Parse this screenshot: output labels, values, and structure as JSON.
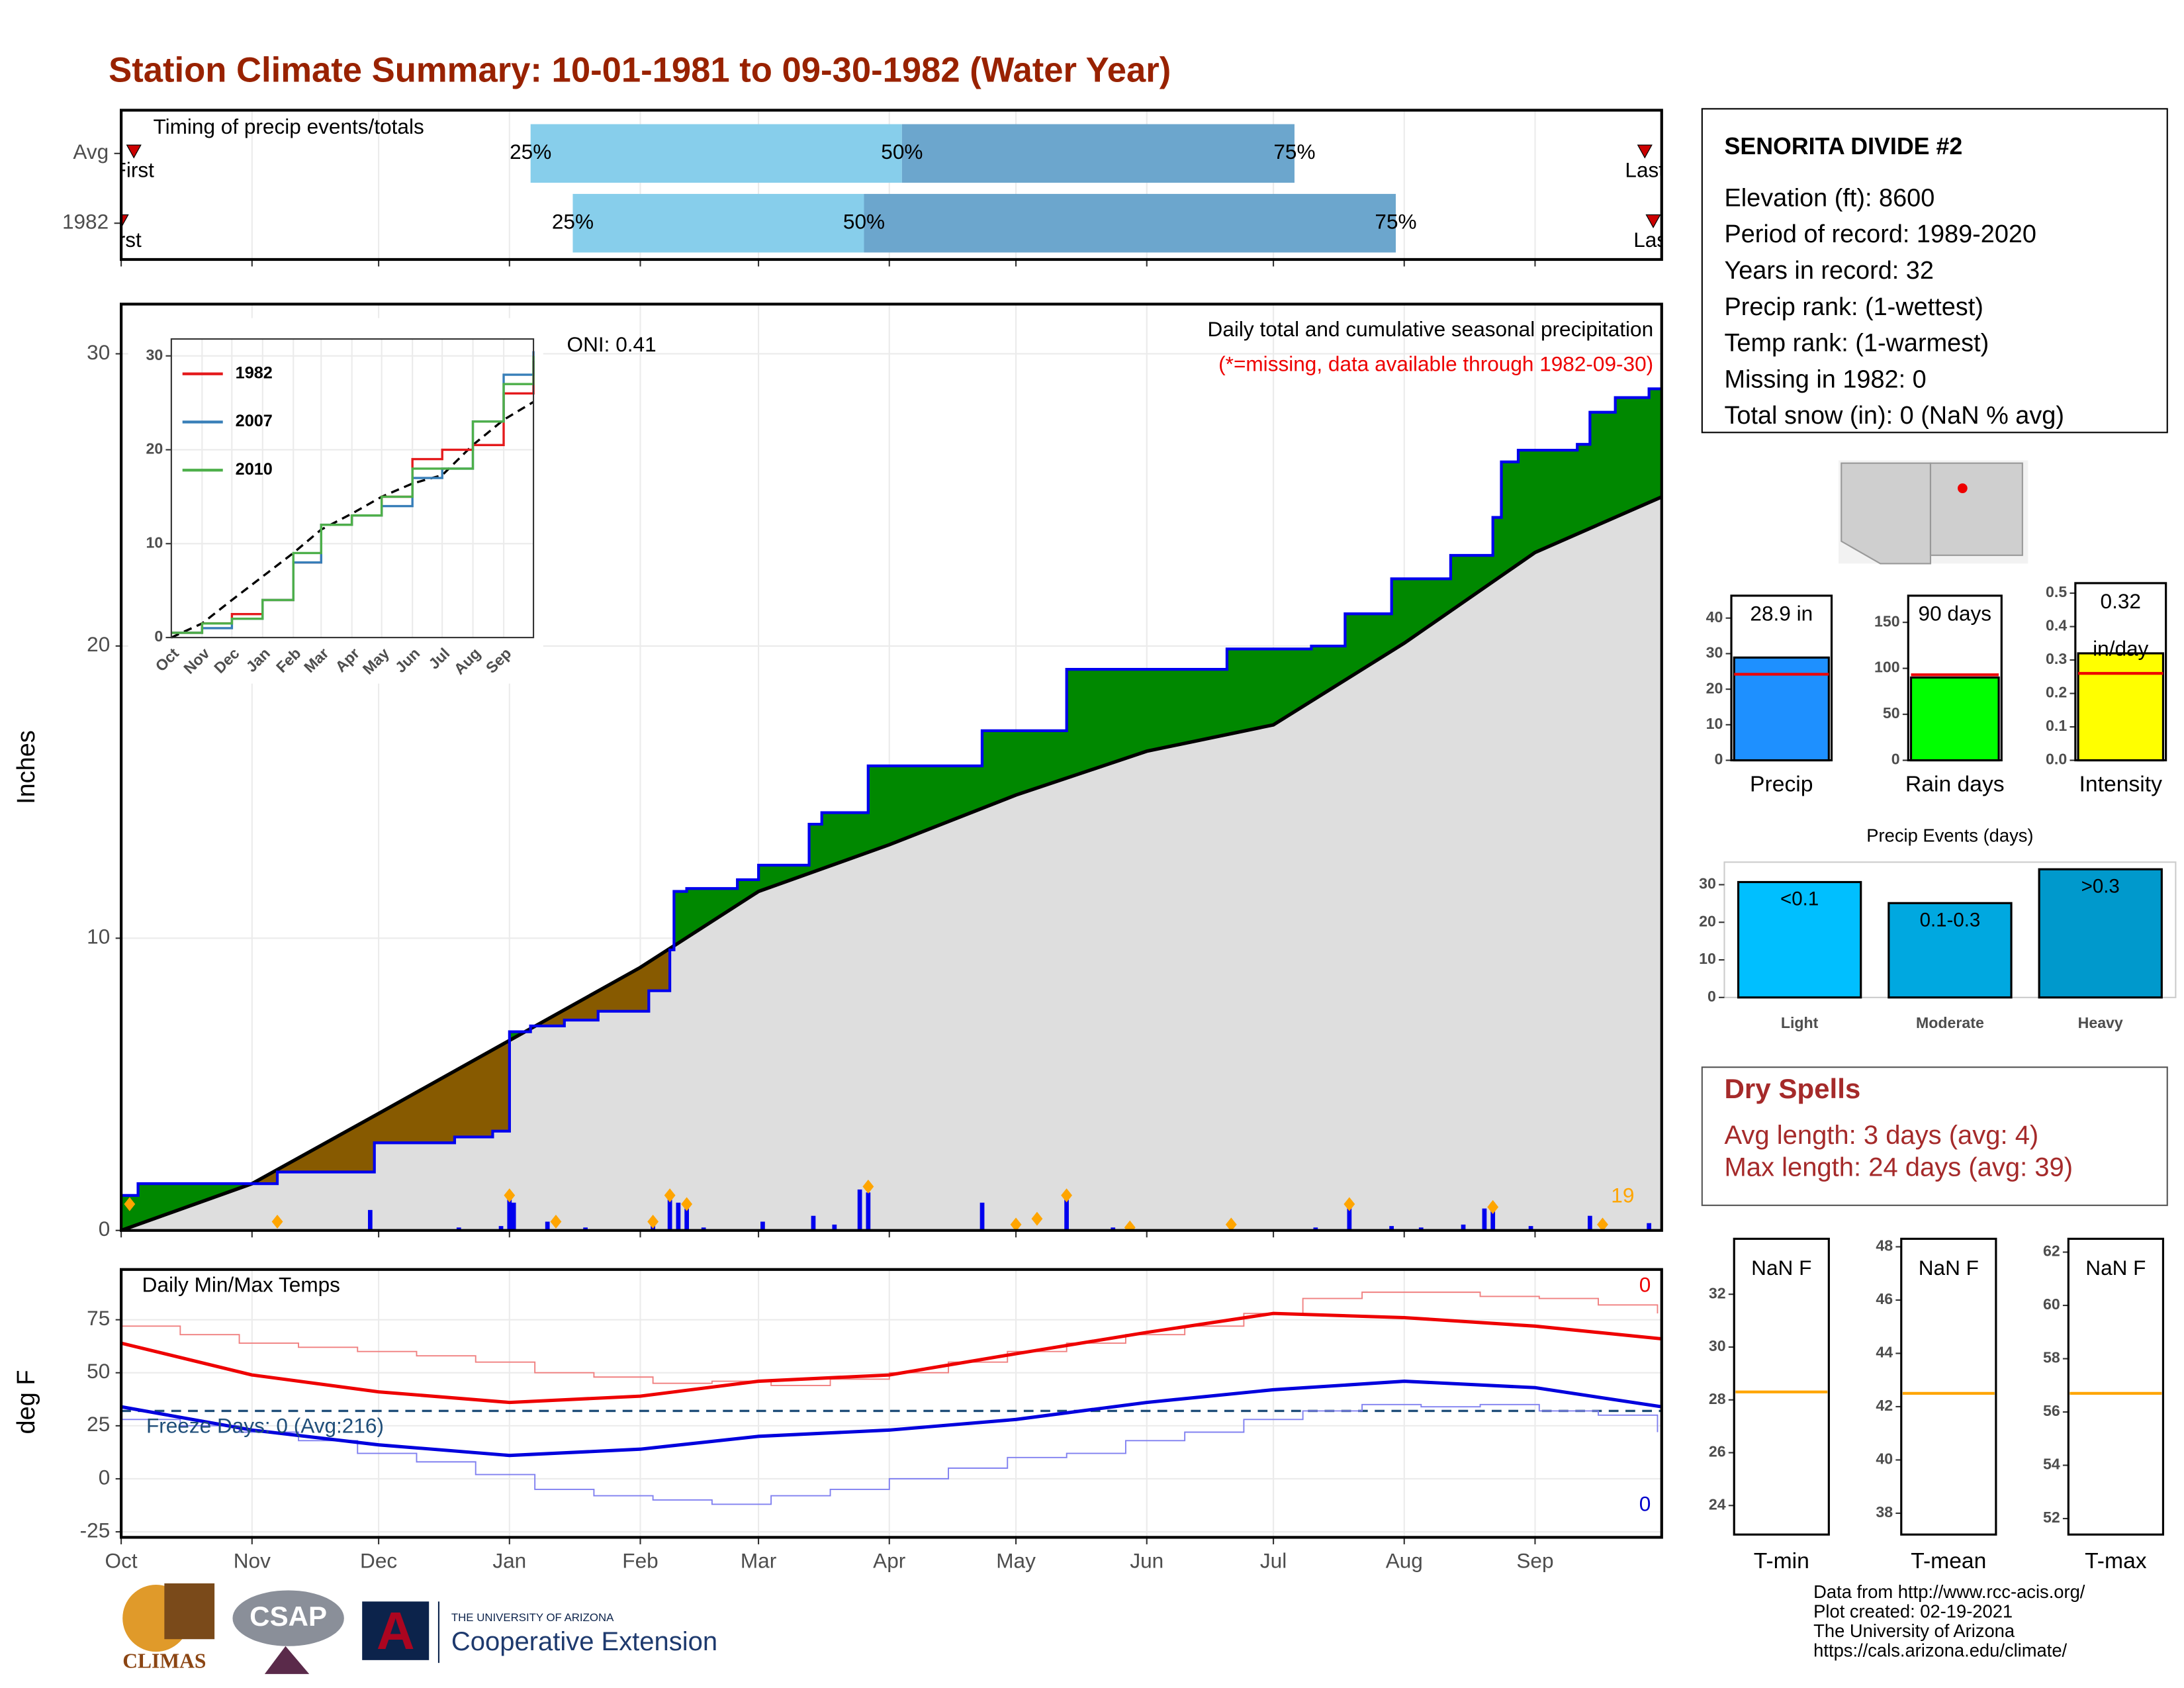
{
  "header": {
    "title": "Station Climate Summary: 10-01-1981 to 09-30-1982 (Water Year)"
  },
  "station": {
    "name": "SENORITA DIVIDE #2",
    "lines": [
      "Elevation (ft): 8600",
      "Period of record: 1989-2020",
      "Years in record: 32",
      "Precip rank:  (1-wettest)",
      "Temp rank:  (1-warmest)",
      "Missing in 1982: 0",
      "Total snow (in): 0 (NaN % avg)"
    ]
  },
  "dry_spells": {
    "title": "Dry Spells",
    "lines": [
      "Avg length: 3 days (avg: 4)",
      "Max length: 24 days (avg: 39)"
    ]
  },
  "footer": {
    "lines": [
      "Data from http://www.rcc-acis.org/",
      "Plot created: 02-19-2021",
      "The University of Arizona",
      "https://cals.arizona.edu/climate/"
    ]
  },
  "logos": {
    "climas": "CLIMAS",
    "csap": "CSAP",
    "university": "THE UNIVERSITY OF ARIZONA",
    "extension": "Cooperative Extension"
  },
  "chart_data": [
    {
      "type": "timing",
      "title": "Timing of precip events/totals",
      "xlim": [
        0,
        365
      ],
      "xticks": [
        0,
        31,
        61,
        92,
        123,
        151,
        182,
        212,
        243,
        273,
        304,
        335
      ],
      "rows": [
        {
          "name": "Avg",
          "first": 3,
          "q25": 97,
          "q50": 185,
          "q75": 278,
          "last": 361
        },
        {
          "name": "1982",
          "first": 0,
          "q25": 107,
          "q50": 176,
          "q75": 302,
          "last": 363
        }
      ],
      "quantile_labels": [
        "25%",
        "50%",
        "75%"
      ],
      "first_label": "First",
      "last_label": "Last",
      "colors": [
        "#87ceeb",
        "#6ca6cd"
      ],
      "marker_color": "#cc0000"
    },
    {
      "type": "cumulative_precip",
      "title": "Daily total and cumulative seasonal precipitation",
      "subtitle": "(*=missing, data available through 1982-09-30)",
      "annotation": "ONI: 0.41",
      "count_label": "19",
      "y_label": "Inches",
      "xlim": [
        0,
        365
      ],
      "xticks": [
        0,
        31,
        61,
        92,
        123,
        151,
        182,
        212,
        243,
        273,
        304,
        335
      ],
      "ylim": [
        0,
        31.7
      ],
      "yticks": [
        0,
        10,
        20,
        30
      ],
      "average": {
        "x": [
          0,
          31,
          61,
          92,
          123,
          151,
          182,
          212,
          243,
          273,
          304,
          335,
          365
        ],
        "values": [
          0,
          1.6,
          4.0,
          6.5,
          9.0,
          11.6,
          13.2,
          14.9,
          16.4,
          17.3,
          20.1,
          23.2,
          25.1
        ]
      },
      "observed": {
        "x": [
          0,
          4,
          37,
          60,
          79,
          88,
          92,
          97,
          105,
          113,
          125,
          130,
          131,
          134,
          146,
          151,
          163,
          166,
          177,
          204,
          224,
          262,
          282,
          290,
          301,
          315,
          325,
          327,
          331,
          345,
          348,
          354,
          362,
          365
        ],
        "values": [
          1.2,
          1.6,
          2.0,
          3.0,
          3.2,
          3.4,
          6.8,
          7.0,
          7.2,
          7.5,
          8.2,
          9.6,
          11.6,
          11.7,
          12.0,
          12.5,
          13.9,
          14.3,
          15.9,
          17.1,
          19.2,
          19.9,
          20.0,
          21.1,
          22.3,
          23.1,
          24.4,
          26.3,
          26.7,
          26.9,
          28.0,
          28.5,
          28.8,
          28.8
        ]
      },
      "daily": {
        "x": [
          59,
          80,
          90,
          92,
          93,
          101,
          110,
          126,
          130,
          132,
          134,
          138,
          152,
          164,
          169,
          175,
          177,
          204,
          224,
          235,
          283,
          291,
          301,
          308,
          318,
          323,
          325,
          334,
          348,
          362
        ],
        "values": [
          0.7,
          0.1,
          0.15,
          1.15,
          0.95,
          0.3,
          0.1,
          0.3,
          1.15,
          0.95,
          0.75,
          0.1,
          0.3,
          0.5,
          0.2,
          1.4,
          1.3,
          0.95,
          1.15,
          0.1,
          0.1,
          0.95,
          0.15,
          0.1,
          0.2,
          0.75,
          0.95,
          0.15,
          0.5,
          0.25
        ]
      },
      "markers": {
        "x": [
          2,
          37,
          92,
          103,
          126,
          130,
          134,
          177,
          212,
          217,
          224,
          239,
          263,
          291,
          325,
          351
        ],
        "values": [
          0.9,
          0.3,
          1.2,
          0.3,
          0.3,
          1.2,
          0.9,
          1.5,
          0.2,
          0.4,
          1.2,
          0.1,
          0.2,
          0.9,
          0.8,
          0.2
        ]
      },
      "colors": {
        "above": "#008800",
        "below": "#875a00",
        "base": "#dedede",
        "observed": "#0000ee",
        "average": "#000000",
        "daily": "#0000ee",
        "marker": "#ffa500"
      }
    },
    {
      "type": "line",
      "xlim": [
        0,
        365
      ],
      "ylim": [
        0,
        31.8
      ],
      "yticks": [
        0,
        10,
        20,
        30
      ],
      "xticks": [
        {
          "value": 0,
          "label": "Oct"
        },
        {
          "value": 31,
          "label": "Nov"
        },
        {
          "value": 61,
          "label": "Dec"
        },
        {
          "value": 92,
          "label": "Jan"
        },
        {
          "value": 123,
          "label": "Feb"
        },
        {
          "value": 151,
          "label": "Mar"
        },
        {
          "value": 182,
          "label": "Apr"
        },
        {
          "value": 212,
          "label": "May"
        },
        {
          "value": 243,
          "label": "Jun"
        },
        {
          "value": 273,
          "label": "Jul"
        },
        {
          "value": 304,
          "label": "Aug"
        },
        {
          "value": 335,
          "label": "Sep"
        }
      ],
      "x": [
        0,
        31,
        61,
        92,
        123,
        151,
        182,
        212,
        243,
        273,
        304,
        335,
        365
      ],
      "series": [
        {
          "name": "1982",
          "color": "#e41a1c",
          "values": [
            0.5,
            1.5,
            2.5,
            4,
            8,
            12,
            13,
            15,
            19,
            20,
            20.5,
            26,
            29.5
          ]
        },
        {
          "name": "2007",
          "color": "#377eb8",
          "values": [
            0.5,
            1,
            2,
            4,
            8,
            12,
            13,
            14,
            17,
            18,
            23,
            28,
            30.5
          ]
        },
        {
          "name": "2010",
          "color": "#4daf4a",
          "values": [
            0.5,
            1.5,
            2,
            4,
            9,
            12,
            13,
            15,
            18,
            18,
            23,
            27,
            30
          ]
        }
      ],
      "average": {
        "color": "#000000",
        "values": [
          0,
          1.5,
          4,
          6.5,
          9,
          11.5,
          13.2,
          15,
          16.4,
          17.3,
          20.5,
          23.2,
          25.1
        ]
      }
    },
    {
      "type": "temps",
      "title": "Daily Min/Max Temps",
      "y_label": "deg F",
      "freeze_label": "Freeze Days: 0 (Avg:216)",
      "max_missing": "0",
      "min_missing": "0",
      "xlim": [
        0,
        365
      ],
      "ylim": [
        -27.6,
        98.7
      ],
      "yticks": [
        -25,
        0,
        25,
        50,
        75
      ],
      "freeze_line": 32,
      "xticks": [
        {
          "value": 0,
          "label": "Oct"
        },
        {
          "value": 31,
          "label": "Nov"
        },
        {
          "value": 61,
          "label": "Dec"
        },
        {
          "value": 92,
          "label": "Jan"
        },
        {
          "value": 123,
          "label": "Feb"
        },
        {
          "value": 151,
          "label": "Mar"
        },
        {
          "value": 182,
          "label": "Apr"
        },
        {
          "value": 212,
          "label": "May"
        },
        {
          "value": 243,
          "label": "Jun"
        },
        {
          "value": 273,
          "label": "Jul"
        },
        {
          "value": 304,
          "label": "Aug"
        },
        {
          "value": 335,
          "label": "Sep"
        }
      ],
      "x_daily": [
        0,
        14,
        28,
        42,
        56,
        70,
        84,
        98,
        112,
        126,
        140,
        154,
        168,
        182,
        196,
        210,
        224,
        238,
        252,
        266,
        280,
        294,
        308,
        322,
        336,
        350,
        364
      ],
      "max_daily": {
        "color": "#f08080",
        "values": [
          72,
          68,
          64,
          62,
          60,
          58,
          55,
          50,
          48,
          45,
          46,
          44,
          47,
          50,
          55,
          60,
          64,
          68,
          72,
          78,
          85,
          88,
          88,
          86,
          85,
          82,
          78
        ]
      },
      "min_daily": {
        "color": "#8080f0",
        "values": [
          28,
          25,
          22,
          18,
          12,
          8,
          2,
          -5,
          -8,
          -10,
          -12,
          -8,
          -5,
          0,
          5,
          10,
          12,
          18,
          22,
          28,
          32,
          35,
          34,
          35,
          32,
          30,
          22
        ]
      },
      "x_avg": [
        0,
        31,
        61,
        92,
        123,
        151,
        182,
        212,
        243,
        273,
        304,
        335,
        365
      ],
      "max_avg": {
        "color": "#ee0000",
        "values": [
          64,
          49,
          41,
          36,
          39,
          46,
          49,
          59,
          69,
          78,
          76,
          72,
          66
        ]
      },
      "min_avg": {
        "color": "#0000dd",
        "values": [
          34,
          23,
          16,
          11,
          14,
          20,
          23,
          28,
          36,
          42,
          46,
          43,
          34
        ]
      },
      "freeze_color": "#1f4e79"
    },
    {
      "type": "summary_bar",
      "category": "Precip",
      "value": 28.9,
      "value_label": "28.9 in",
      "average": 24.2,
      "ylim": [
        0,
        46.3
      ],
      "yticks": [
        0,
        10,
        20,
        30,
        40
      ],
      "color": "#1e90ff"
    },
    {
      "type": "summary_bar",
      "category": "Rain days",
      "value": 90,
      "value_label": "90 days",
      "average": 93,
      "ylim": [
        0,
        179
      ],
      "yticks": [
        0,
        50,
        100,
        150
      ],
      "color": "#00ff00"
    },
    {
      "type": "summary_bar",
      "category": "Intensity",
      "value": 0.32,
      "value_label": "0.32",
      "unit_label": "in/day",
      "average": 0.26,
      "ylim": [
        0,
        0.53
      ],
      "yticks": [
        {
          "value": 0,
          "label": "0.0"
        },
        0.1,
        0.2,
        0.3,
        0.4,
        0.5
      ],
      "color": "#ffff00"
    },
    {
      "type": "bar",
      "title": "Precip Events (days)",
      "categories": [
        "Light",
        "Moderate",
        "Heavy"
      ],
      "bar_labels": [
        "<0.1",
        "0.1-0.3",
        ">0.3"
      ],
      "values": [
        30.7,
        25.1,
        34.1
      ],
      "colors": [
        "#00bfff",
        "#00a8e0",
        "#0099cc"
      ],
      "ylim": [
        0,
        36
      ],
      "yticks": [
        0,
        10,
        20,
        30
      ]
    },
    {
      "type": "temp_box",
      "category": "T-min",
      "value_label": "NaN F",
      "average": 28.3,
      "ylim": [
        22.9,
        34.1
      ],
      "yticks": [
        24,
        26,
        28,
        30,
        32
      ],
      "color": "#ffa500"
    },
    {
      "type": "temp_box",
      "category": "T-mean",
      "value_label": "NaN F",
      "average": 42.5,
      "ylim": [
        37.2,
        48.3
      ],
      "yticks": [
        38,
        40,
        42,
        44,
        46,
        48
      ],
      "color": "#ffa500"
    },
    {
      "type": "temp_box",
      "category": "T-max",
      "value_label": "NaN F",
      "average": 56.7,
      "ylim": [
        51.4,
        62.5
      ],
      "yticks": [
        52,
        54,
        56,
        58,
        60,
        62
      ],
      "color": "#ffa500"
    }
  ]
}
